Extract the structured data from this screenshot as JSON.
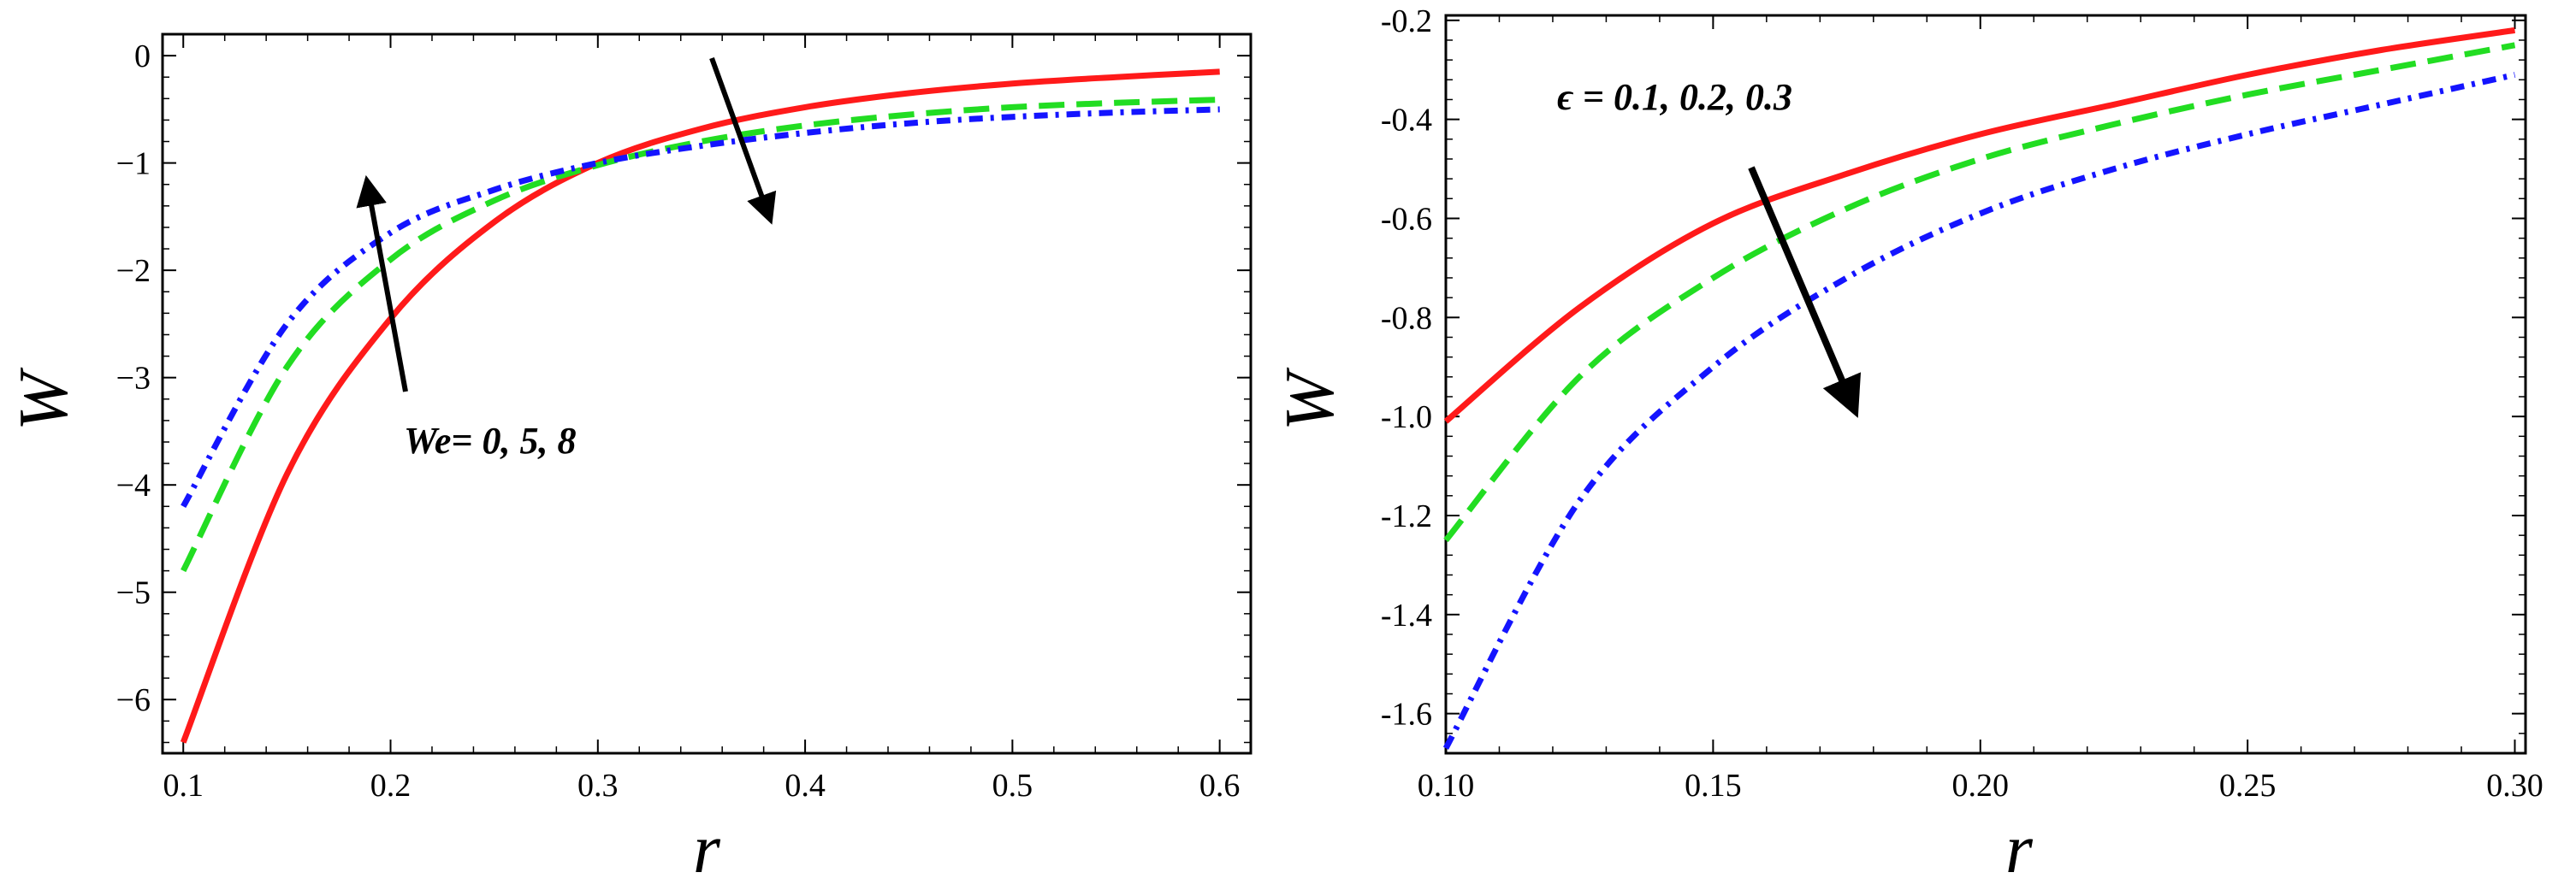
{
  "colors": {
    "red": "#ff1a1a",
    "green": "#22dd22",
    "blue": "#1414ff",
    "axis": "#000000",
    "background": "#ffffff"
  },
  "chart_data": [
    {
      "type": "line",
      "title": "",
      "xlabel": "r",
      "ylabel": "W",
      "xlim": [
        0.09,
        0.615
      ],
      "ylim": [
        -6.5,
        0.2
      ],
      "xticks": [
        0.1,
        0.2,
        0.3,
        0.4,
        0.5,
        0.6
      ],
      "xtick_labels": [
        "0.1",
        "0.2",
        "0.3",
        "0.4",
        "0.5",
        "0.6"
      ],
      "yticks": [
        0,
        -1,
        -2,
        -3,
        -4,
        -5,
        -6
      ],
      "ytick_labels": [
        "0",
        "−1",
        "−2",
        "−3",
        "−4",
        "−5",
        "−6"
      ],
      "annotation": "We= 0, 5, 8",
      "x": [
        0.1,
        0.15,
        0.2,
        0.25,
        0.3,
        0.35,
        0.4,
        0.45,
        0.5,
        0.55,
        0.6
      ],
      "series": [
        {
          "name": "We = 0",
          "style": "solid",
          "color": "#ff1a1a",
          "values": [
            -6.4,
            -3.9,
            -2.45,
            -1.55,
            -1.0,
            -0.68,
            -0.48,
            -0.35,
            -0.26,
            -0.2,
            -0.15
          ]
        },
        {
          "name": "We = 5",
          "style": "dashed",
          "color": "#22dd22",
          "values": [
            -4.8,
            -2.9,
            -1.9,
            -1.35,
            -1.02,
            -0.8,
            -0.65,
            -0.55,
            -0.48,
            -0.44,
            -0.41
          ]
        },
        {
          "name": "We = 8",
          "style": "dashdot",
          "color": "#1414ff",
          "values": [
            -4.2,
            -2.5,
            -1.65,
            -1.25,
            -1.0,
            -0.84,
            -0.72,
            -0.63,
            -0.57,
            -0.53,
            -0.5
          ]
        }
      ]
    },
    {
      "type": "line",
      "title": "",
      "xlabel": "r",
      "ylabel": "W",
      "xlim": [
        0.1,
        0.302
      ],
      "ylim": [
        -1.68,
        -0.19
      ],
      "xticks": [
        0.1,
        0.15,
        0.2,
        0.25,
        0.3
      ],
      "xtick_labels": [
        "0.10",
        "0.15",
        "0.20",
        "0.25",
        "0.30"
      ],
      "yticks": [
        -0.2,
        -0.4,
        -0.6,
        -0.8,
        -1.0,
        -1.2,
        -1.4,
        -1.6
      ],
      "ytick_labels": [
        "-0.2",
        "-0.4",
        "-0.6",
        "-0.8",
        "-1.0",
        "-1.2",
        "-1.4",
        "-1.6"
      ],
      "annotation": "ϵ = 0.1,  0.2,  0.3",
      "x": [
        0.1,
        0.125,
        0.15,
        0.175,
        0.2,
        0.225,
        0.25,
        0.275,
        0.3
      ],
      "series": [
        {
          "name": "ϵ = 0.1",
          "style": "solid",
          "color": "#ff1a1a",
          "values": [
            -1.01,
            -0.78,
            -0.61,
            -0.51,
            -0.43,
            -0.37,
            -0.31,
            -0.26,
            -0.22
          ]
        },
        {
          "name": "ϵ = 0.2",
          "style": "dashed",
          "color": "#22dd22",
          "values": [
            -1.25,
            -0.92,
            -0.72,
            -0.58,
            -0.48,
            -0.41,
            -0.35,
            -0.3,
            -0.25
          ]
        },
        {
          "name": "ϵ = 0.3",
          "style": "dashdot",
          "color": "#1414ff",
          "values": [
            -1.67,
            -1.17,
            -0.9,
            -0.72,
            -0.59,
            -0.5,
            -0.43,
            -0.37,
            -0.31
          ]
        }
      ]
    }
  ]
}
